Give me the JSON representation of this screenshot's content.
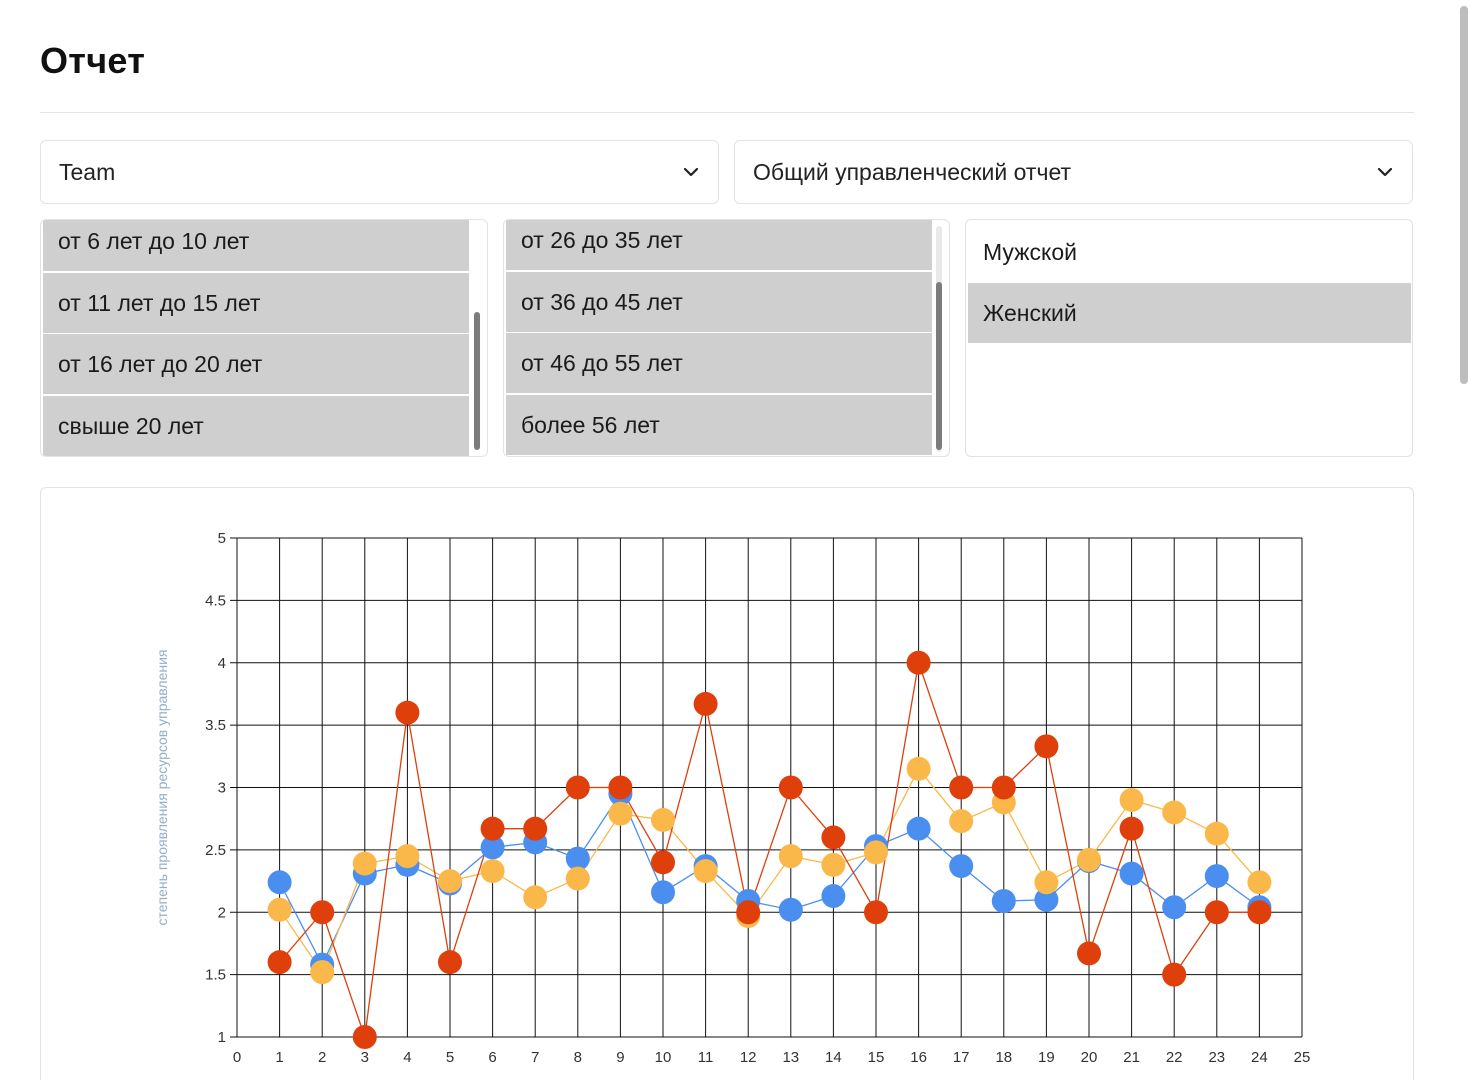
{
  "page": {
    "title": "Отчет"
  },
  "filters": {
    "group_select": {
      "value": "Team"
    },
    "report_select": {
      "value": "Общий управленческий отчет"
    },
    "experience_list": {
      "options": [
        {
          "label": "от 6 лет до 10 лет",
          "selected": true
        },
        {
          "label": "от 11 лет до 15 лет",
          "selected": true
        },
        {
          "label": "от 16 лет до 20 лет",
          "selected": true
        },
        {
          "label": "свыше 20 лет",
          "selected": true
        }
      ]
    },
    "age_list": {
      "options": [
        {
          "label": "от 26 до 35 лет",
          "selected": true
        },
        {
          "label": "от 36 до 45 лет",
          "selected": true
        },
        {
          "label": "от 46 до 55 лет",
          "selected": true
        },
        {
          "label": "более 56 лет",
          "selected": true
        }
      ]
    },
    "gender_list": {
      "options": [
        {
          "label": "Мужской",
          "selected": false
        },
        {
          "label": "Женский",
          "selected": true
        }
      ]
    }
  },
  "icons": {
    "dropdown": "chevron-down-icon"
  },
  "colors": {
    "blue": "#4a8ff0",
    "orange": "#fbb84a",
    "red": "#de3f0b",
    "selected_option": "#cfcfcf"
  },
  "chart_data": {
    "type": "line",
    "ylabel": "степень проявления ресурсов управления",
    "xlim": [
      0,
      25
    ],
    "ylim": [
      1,
      5
    ],
    "x_ticks": [
      0,
      1,
      2,
      3,
      4,
      5,
      6,
      7,
      8,
      9,
      10,
      11,
      12,
      13,
      14,
      15,
      16,
      17,
      18,
      19,
      20,
      21,
      22,
      23,
      24,
      25
    ],
    "y_ticks": [
      "1",
      "1.5",
      "2",
      "2.5",
      "3",
      "3.5",
      "4",
      "4.5",
      "5"
    ],
    "grid": true,
    "x": [
      1,
      2,
      3,
      4,
      5,
      6,
      7,
      8,
      9,
      10,
      11,
      12,
      13,
      14,
      15,
      16,
      17,
      18,
      19,
      20,
      21,
      22,
      23,
      24
    ],
    "series": [
      {
        "color": "#4a8ff0",
        "values": [
          2.24,
          1.58,
          2.31,
          2.38,
          2.23,
          2.52,
          2.56,
          2.43,
          2.95,
          2.16,
          2.37,
          2.09,
          2.02,
          2.13,
          2.53,
          2.67,
          2.37,
          2.09,
          2.1,
          2.41,
          2.31,
          2.04,
          2.29,
          2.04
        ]
      },
      {
        "color": "#fbb84a",
        "values": [
          2.02,
          1.52,
          2.39,
          2.45,
          2.25,
          2.33,
          2.12,
          2.27,
          2.79,
          2.74,
          2.33,
          1.97,
          2.45,
          2.38,
          2.48,
          3.15,
          2.73,
          2.88,
          2.24,
          2.42,
          2.9,
          2.8,
          2.63,
          2.24
        ]
      },
      {
        "color": "#de3f0b",
        "values": [
          1.6,
          2.0,
          1.0,
          3.6,
          1.6,
          2.67,
          2.67,
          3.0,
          3.0,
          2.4,
          3.67,
          2.0,
          3.0,
          2.6,
          2.0,
          4.0,
          3.0,
          3.0,
          3.33,
          1.67,
          2.67,
          1.5,
          2.0,
          2.0
        ]
      }
    ]
  }
}
